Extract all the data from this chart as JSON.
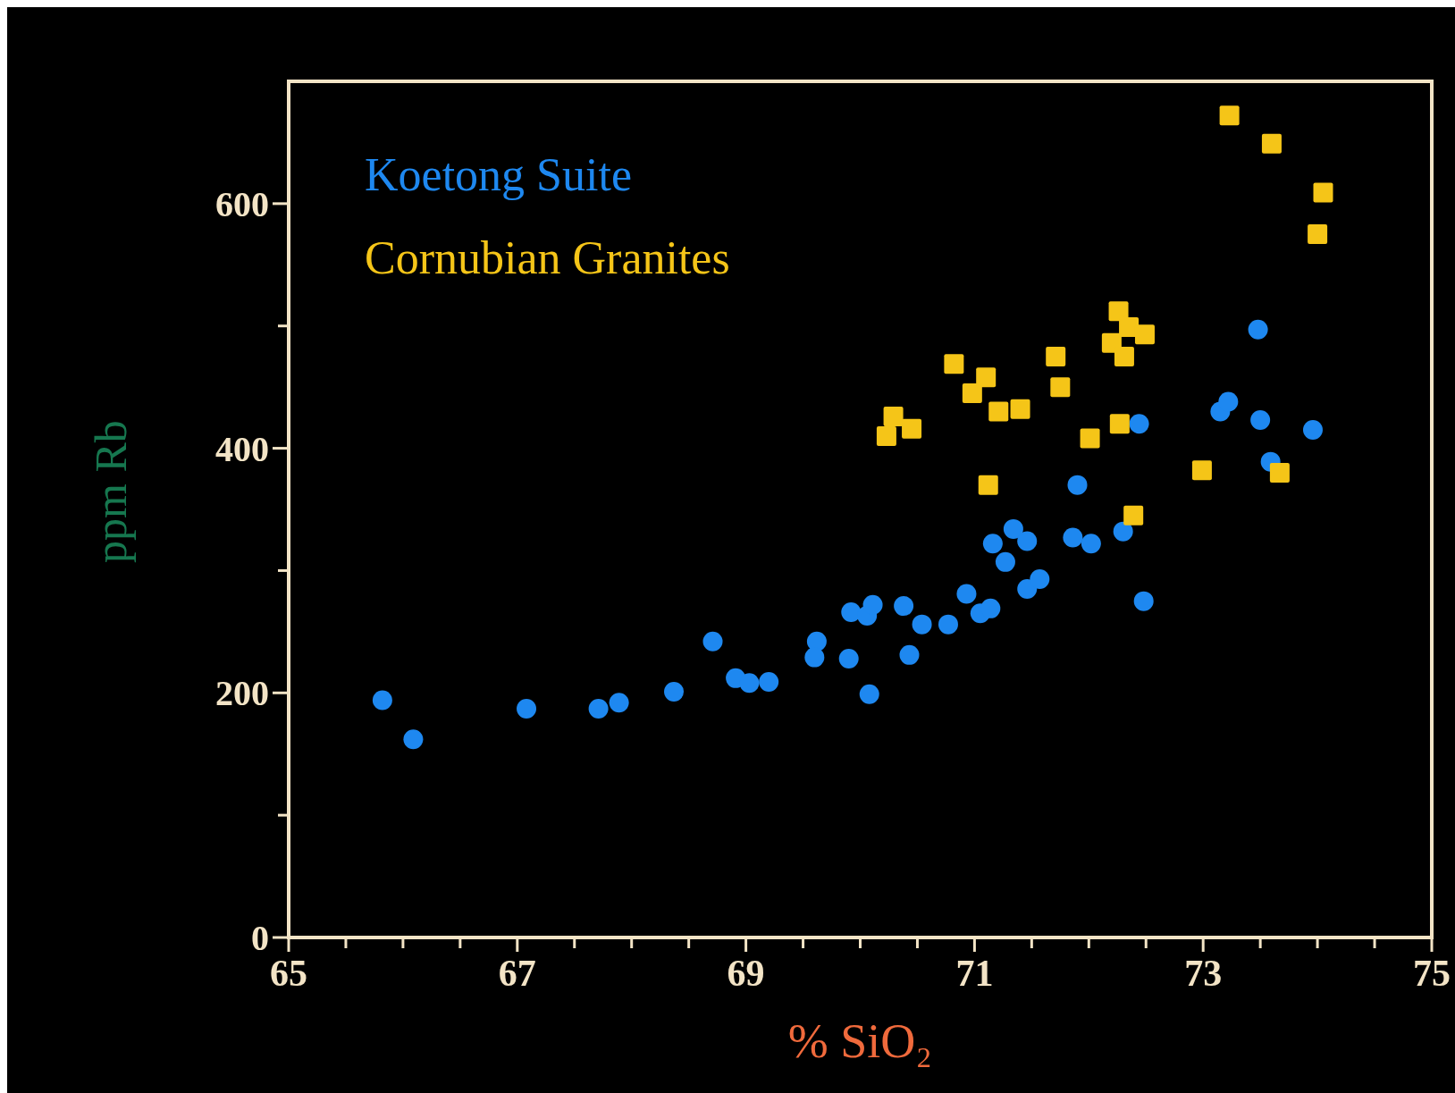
{
  "chart_data": {
    "type": "scatter",
    "xlabel": "% SiO₂",
    "ylabel": "ppm Rb",
    "xlim": [
      65,
      75
    ],
    "ylim": [
      0,
      700
    ],
    "xticks": [
      65,
      {
        "value": 65.5,
        "label": null
      },
      {
        "value": 66,
        "label": null
      },
      {
        "value": 66.5,
        "label": null
      },
      67,
      {
        "value": 67.5,
        "label": null
      },
      {
        "value": 68,
        "label": null
      },
      {
        "value": 68.5,
        "label": null
      },
      69,
      {
        "value": 69.5,
        "label": null
      },
      {
        "value": 70,
        "label": null
      },
      {
        "value": 70.5,
        "label": null
      },
      71,
      {
        "value": 71.5,
        "label": null
      },
      {
        "value": 72,
        "label": null
      },
      {
        "value": 72.5,
        "label": null
      },
      73,
      {
        "value": 73.5,
        "label": null
      },
      {
        "value": 74,
        "label": null
      },
      {
        "value": 74.5,
        "label": null
      },
      75
    ],
    "yticks": [
      0,
      {
        "value": 100,
        "label": null
      },
      200,
      {
        "value": 300,
        "label": null
      },
      400,
      {
        "value": 500,
        "label": null
      },
      600
    ],
    "legend": "top left",
    "grid": false,
    "series": [
      {
        "name": "Koetong Suite",
        "color": "#1e88f0",
        "marker": "circle",
        "x": [
          65.82,
          66.09,
          67.08,
          67.71,
          67.89,
          68.37,
          68.71,
          68.91,
          69.03,
          69.2,
          69.62,
          69.6,
          69.9,
          69.92,
          70.06,
          70.11,
          70.08,
          70.38,
          70.43,
          70.54,
          70.77,
          70.93,
          71.05,
          71.14,
          71.16,
          71.27,
          71.34,
          71.46,
          71.46,
          71.57,
          71.86,
          71.9,
          72.02,
          72.3,
          72.44,
          72.48,
          73.15,
          73.22,
          73.48,
          73.5,
          73.59,
          73.96
        ],
        "values": [
          194,
          162,
          187,
          187,
          192,
          201,
          242,
          212,
          208,
          209,
          242,
          229,
          228,
          266,
          263,
          272,
          199,
          271,
          231,
          256,
          256,
          281,
          265,
          269,
          322,
          307,
          334,
          324,
          285,
          293,
          327,
          370,
          322,
          332,
          420,
          275,
          430,
          438,
          497,
          423,
          389,
          415
        ]
      },
      {
        "name": "Cornubian Granites",
        "color": "#f5c518",
        "marker": "square",
        "x": [
          73.23,
          73.6,
          74.05,
          74.0,
          70.23,
          70.29,
          70.45,
          70.82,
          70.98,
          71.1,
          71.21,
          71.4,
          71.12,
          71.71,
          71.75,
          72.01,
          72.26,
          72.2,
          72.35,
          72.31,
          72.49,
          72.27,
          72.39,
          72.99,
          73.67
        ],
        "values": [
          672,
          649,
          609,
          575,
          410,
          426,
          416,
          469,
          445,
          458,
          430,
          432,
          370,
          475,
          450,
          408,
          512,
          486,
          499,
          475,
          493,
          420,
          345,
          382,
          380
        ]
      }
    ]
  }
}
